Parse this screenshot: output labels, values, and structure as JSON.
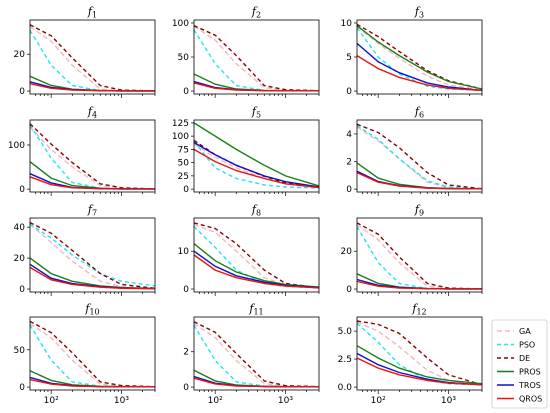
{
  "chart_data": {
    "type": "line",
    "xscale": "log",
    "xlim": [
      50,
      3000
    ],
    "x": [
      50,
      100,
      200,
      500,
      1000,
      3000
    ],
    "xtick_labels": [
      "10²",
      "10³"
    ],
    "series_styles": [
      {
        "name": "GA",
        "color": "#f4b6c2",
        "dash": "5,3"
      },
      {
        "name": "PSO",
        "color": "#1ee6ec",
        "dash": "4,3"
      },
      {
        "name": "DE",
        "color": "#8b0000",
        "dash": "4,3"
      },
      {
        "name": "PROS",
        "color": "#1a7f1a",
        "dash": ""
      },
      {
        "name": "TROS",
        "color": "#1010c8",
        "dash": ""
      },
      {
        "name": "QROS",
        "color": "#e8140f",
        "dash": ""
      }
    ],
    "legend": {
      "location": "bottom-right",
      "entries": [
        "GA",
        "PSO",
        "DE",
        "PROS",
        "TROS",
        "QROS"
      ]
    },
    "panels": [
      {
        "title": "f",
        "sub": "1",
        "yticks": [
          0,
          20
        ],
        "ylim": [
          0,
          37
        ],
        "series": {
          "GA": [
            35,
            27,
            14,
            1,
            0.3,
            0.1
          ],
          "PSO": [
            33,
            14,
            3,
            0.2,
            0.1,
            0.1
          ],
          "DE": [
            36,
            30,
            18,
            3,
            0.5,
            0.1
          ],
          "PROS": [
            8,
            3,
            1,
            0.3,
            0.1,
            0.1
          ],
          "TROS": [
            5,
            2,
            0.8,
            0.2,
            0.1,
            0.1
          ],
          "QROS": [
            4,
            1.5,
            0.5,
            0.2,
            0.1,
            0.1
          ]
        }
      },
      {
        "title": "f",
        "sub": "2",
        "yticks": [
          0,
          50,
          100
        ],
        "ylim": [
          0,
          100
        ],
        "series": {
          "GA": [
            95,
            75,
            40,
            5,
            1,
            0.5
          ],
          "PSO": [
            90,
            40,
            8,
            1,
            0.5,
            0.5
          ],
          "DE": [
            96,
            82,
            52,
            8,
            2,
            0.5
          ],
          "PROS": [
            25,
            10,
            3,
            1,
            0.5,
            0.5
          ],
          "TROS": [
            14,
            5,
            2,
            0.5,
            0.5,
            0.5
          ],
          "QROS": [
            12,
            4,
            1.5,
            0.5,
            0.5,
            0.5
          ]
        }
      },
      {
        "title": "f",
        "sub": "3",
        "yticks": [
          0,
          5,
          10
        ],
        "ylim": [
          0,
          10
        ],
        "series": {
          "GA": [
            9.5,
            7,
            4.8,
            2.2,
            0.9,
            0.2
          ],
          "PSO": [
            9.3,
            5,
            2.5,
            0.7,
            0.3,
            0.1
          ],
          "DE": [
            9.8,
            8,
            5.8,
            3,
            1.5,
            0.3
          ],
          "PROS": [
            9.6,
            7.2,
            5.2,
            2.8,
            1.4,
            0.3
          ],
          "TROS": [
            7,
            4.3,
            2.7,
            1.2,
            0.6,
            0.1
          ],
          "QROS": [
            5.2,
            3.3,
            2,
            0.9,
            0.4,
            0.1
          ]
        }
      },
      {
        "title": "f",
        "sub": "4",
        "yticks": [
          0,
          100
        ],
        "ylim": [
          0,
          150
        ],
        "series": {
          "GA": [
            140,
            90,
            50,
            8,
            2,
            0.5
          ],
          "PSO": [
            145,
            70,
            15,
            2,
            0.5,
            0.5
          ],
          "DE": [
            148,
            102,
            60,
            12,
            3,
            0.5
          ],
          "PROS": [
            62,
            25,
            8,
            2,
            0.5,
            0.5
          ],
          "TROS": [
            35,
            14,
            4,
            1,
            0.5,
            0.5
          ],
          "QROS": [
            28,
            10,
            3,
            1,
            0.5,
            0.5
          ]
        }
      },
      {
        "title": "f",
        "sub": "5",
        "yticks": [
          0,
          25,
          50,
          75,
          100,
          125
        ],
        "ylim": [
          0,
          125
        ],
        "series": {
          "GA": [
            85,
            60,
            40,
            20,
            10,
            3
          ],
          "PSO": [
            90,
            40,
            20,
            8,
            4,
            2
          ],
          "DE": [
            92,
            65,
            45,
            24,
            12,
            4
          ],
          "PROS": [
            125,
            100,
            75,
            45,
            25,
            6
          ],
          "TROS": [
            88,
            65,
            45,
            25,
            14,
            4
          ],
          "QROS": [
            75,
            52,
            35,
            20,
            10,
            3
          ]
        }
      },
      {
        "title": "f",
        "sub": "6",
        "yticks": [
          0,
          2,
          4
        ],
        "ylim": [
          0,
          4.8
        ],
        "series": {
          "GA": [
            4.5,
            3.5,
            2.2,
            0.5,
            0.1,
            0.02
          ],
          "PSO": [
            4.6,
            3.6,
            2.2,
            0.6,
            0.15,
            0.02
          ],
          "DE": [
            4.7,
            4.1,
            3.0,
            1.2,
            0.3,
            0.02
          ],
          "PROS": [
            1.9,
            0.8,
            0.35,
            0.1,
            0.05,
            0.02
          ],
          "TROS": [
            1.3,
            0.55,
            0.25,
            0.08,
            0.04,
            0.02
          ],
          "QROS": [
            1.2,
            0.5,
            0.22,
            0.07,
            0.03,
            0.02
          ]
        }
      },
      {
        "title": "f",
        "sub": "7",
        "yticks": [
          0,
          20,
          40
        ],
        "ylim": [
          0,
          44
        ],
        "series": {
          "GA": [
            42,
            30,
            18,
            5,
            1.5,
            0.5
          ],
          "PSO": [
            42,
            33,
            22,
            10,
            5,
            2
          ],
          "DE": [
            43,
            36,
            25,
            10,
            3,
            0.5
          ],
          "PROS": [
            20,
            10,
            5,
            2,
            1,
            0.3
          ],
          "TROS": [
            16,
            7,
            3.5,
            1.5,
            0.7,
            0.2
          ],
          "QROS": [
            14,
            6,
            3,
            1.2,
            0.5,
            0.2
          ]
        }
      },
      {
        "title": "f",
        "sub": "8",
        "yticks": [
          0,
          10
        ],
        "ylim": [
          0,
          18
        ],
        "series": {
          "GA": [
            17,
            15,
            10,
            3,
            1,
            0.3
          ],
          "PSO": [
            16.5,
            11,
            5,
            1.5,
            0.7,
            0.3
          ],
          "DE": [
            17.5,
            16,
            12,
            5,
            1.5,
            0.3
          ],
          "PROS": [
            12,
            7.5,
            4.5,
            2.2,
            1.2,
            0.5
          ],
          "TROS": [
            10,
            6,
            3.5,
            1.8,
            1,
            0.4
          ],
          "QROS": [
            9,
            5,
            3,
            1.5,
            0.8,
            0.3
          ]
        }
      },
      {
        "title": "f",
        "sub": "9",
        "yticks": [
          0,
          20
        ],
        "ylim": [
          0,
          36
        ],
        "series": {
          "GA": [
            34,
            26,
            14,
            1.5,
            0.3,
            0.1
          ],
          "PSO": [
            33,
            14,
            3,
            0.2,
            0.1,
            0.1
          ],
          "DE": [
            35,
            29,
            17,
            3,
            0.5,
            0.1
          ],
          "PROS": [
            8,
            3,
            1,
            0.3,
            0.1,
            0.1
          ],
          "TROS": [
            5,
            2,
            0.8,
            0.2,
            0.1,
            0.1
          ],
          "QROS": [
            4,
            1.5,
            0.5,
            0.2,
            0.1,
            0.1
          ]
        }
      },
      {
        "title": "f",
        "sub": "10",
        "yticks": [
          0,
          50
        ],
        "ylim": [
          0,
          90
        ],
        "series": {
          "GA": [
            85,
            66,
            36,
            4,
            1,
            0.5
          ],
          "PSO": [
            83,
            36,
            7,
            1,
            0.5,
            0.5
          ],
          "DE": [
            88,
            73,
            46,
            7,
            2,
            0.5
          ],
          "PROS": [
            22,
            9,
            3,
            1,
            0.5,
            0.5
          ],
          "TROS": [
            13,
            5,
            2,
            0.5,
            0.5,
            0.5
          ],
          "QROS": [
            10,
            4,
            1.5,
            0.5,
            0.5,
            0.5
          ]
        }
      },
      {
        "title": "f",
        "sub": "11",
        "yticks": [
          0,
          2
        ],
        "ylim": [
          0,
          3.8
        ],
        "series": {
          "GA": [
            3.6,
            2.8,
            1.5,
            0.2,
            0.05,
            0.02
          ],
          "PSO": [
            3.5,
            1.5,
            0.3,
            0.05,
            0.02,
            0.02
          ],
          "DE": [
            3.7,
            3.1,
            1.9,
            0.35,
            0.08,
            0.02
          ],
          "PROS": [
            0.95,
            0.35,
            0.12,
            0.04,
            0.02,
            0.02
          ],
          "TROS": [
            0.6,
            0.22,
            0.08,
            0.03,
            0.02,
            0.02
          ],
          "QROS": [
            0.5,
            0.18,
            0.06,
            0.03,
            0.02,
            0.02
          ]
        }
      },
      {
        "title": "f",
        "sub": "12",
        "yticks": [
          0.0,
          2.5,
          5.0
        ],
        "ytick_labels": [
          "0.0",
          "2.5",
          "5.0"
        ],
        "ylim": [
          0,
          6
        ],
        "series": {
          "GA": [
            5.8,
            5.0,
            3.6,
            1.5,
            0.6,
            0.2
          ],
          "PSO": [
            5.7,
            4.0,
            2.0,
            0.6,
            0.3,
            0.2
          ],
          "DE": [
            5.9,
            5.6,
            4.8,
            2.6,
            1.1,
            0.2
          ],
          "PROS": [
            3.7,
            2.6,
            1.7,
            0.9,
            0.6,
            0.3
          ],
          "TROS": [
            3.0,
            2.0,
            1.3,
            0.7,
            0.4,
            0.2
          ],
          "QROS": [
            2.6,
            1.7,
            1.1,
            0.6,
            0.35,
            0.2
          ]
        }
      }
    ]
  }
}
